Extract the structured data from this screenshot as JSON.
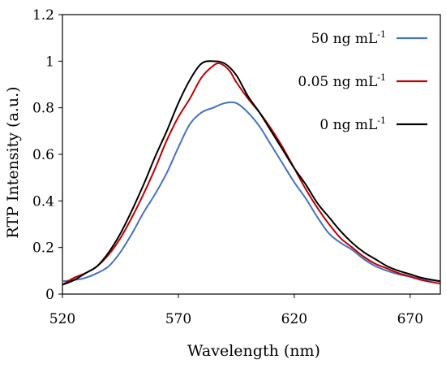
{
  "chart_data": {
    "type": "line",
    "xlabel": "Wavelength (nm)",
    "ylabel": "RTP Intensity (a.u.)",
    "xlim": [
      520,
      683
    ],
    "ylim": [
      0,
      1.2
    ],
    "x_ticks": [
      "520",
      "570",
      "620",
      "670"
    ],
    "y_ticks": [
      "0",
      "0.2",
      "0.4",
      "0.6",
      "0.8",
      "1",
      "1.2"
    ],
    "legend_position": "top-right",
    "series": [
      {
        "name": "50 ng mL",
        "name_sup": "-1",
        "color": "#4472c4",
        "x": [
          520,
          525,
          530,
          535,
          540,
          545,
          550,
          555,
          560,
          565,
          570,
          575,
          580,
          585,
          590,
          595,
          600,
          605,
          610,
          615,
          620,
          625,
          630,
          635,
          640,
          645,
          650,
          655,
          660,
          665,
          670,
          675,
          683
        ],
        "y": [
          0.055,
          0.06,
          0.07,
          0.09,
          0.12,
          0.18,
          0.26,
          0.35,
          0.43,
          0.52,
          0.63,
          0.73,
          0.78,
          0.8,
          0.82,
          0.82,
          0.78,
          0.72,
          0.64,
          0.56,
          0.48,
          0.41,
          0.33,
          0.26,
          0.22,
          0.19,
          0.15,
          0.12,
          0.1,
          0.085,
          0.075,
          0.065,
          0.055
        ]
      },
      {
        "name": "0.05 ng mL",
        "name_sup": "-1",
        "color": "#c00000",
        "x": [
          520,
          525,
          530,
          535,
          540,
          545,
          550,
          555,
          560,
          565,
          570,
          575,
          580,
          585,
          588,
          592,
          595,
          600,
          605,
          610,
          615,
          620,
          625,
          630,
          635,
          640,
          645,
          650,
          655,
          660,
          665,
          670,
          675,
          683
        ],
        "y": [
          0.04,
          0.07,
          0.09,
          0.12,
          0.17,
          0.24,
          0.33,
          0.43,
          0.54,
          0.66,
          0.76,
          0.84,
          0.93,
          0.98,
          0.99,
          0.96,
          0.91,
          0.84,
          0.78,
          0.71,
          0.63,
          0.54,
          0.45,
          0.37,
          0.3,
          0.24,
          0.2,
          0.16,
          0.13,
          0.11,
          0.09,
          0.075,
          0.06,
          0.045
        ]
      },
      {
        "name": "0 ng mL",
        "name_sup": "-1",
        "color": "#000000",
        "x": [
          520,
          525,
          530,
          535,
          540,
          545,
          550,
          555,
          560,
          565,
          570,
          575,
          580,
          585,
          590,
          595,
          600,
          605,
          610,
          615,
          620,
          625,
          630,
          635,
          640,
          645,
          650,
          655,
          660,
          665,
          670,
          675,
          683
        ],
        "y": [
          0.04,
          0.06,
          0.09,
          0.12,
          0.18,
          0.26,
          0.36,
          0.47,
          0.59,
          0.7,
          0.82,
          0.92,
          0.99,
          1.0,
          0.99,
          0.94,
          0.85,
          0.78,
          0.7,
          0.62,
          0.54,
          0.47,
          0.39,
          0.33,
          0.27,
          0.22,
          0.18,
          0.15,
          0.12,
          0.1,
          0.085,
          0.07,
          0.055
        ]
      }
    ]
  }
}
